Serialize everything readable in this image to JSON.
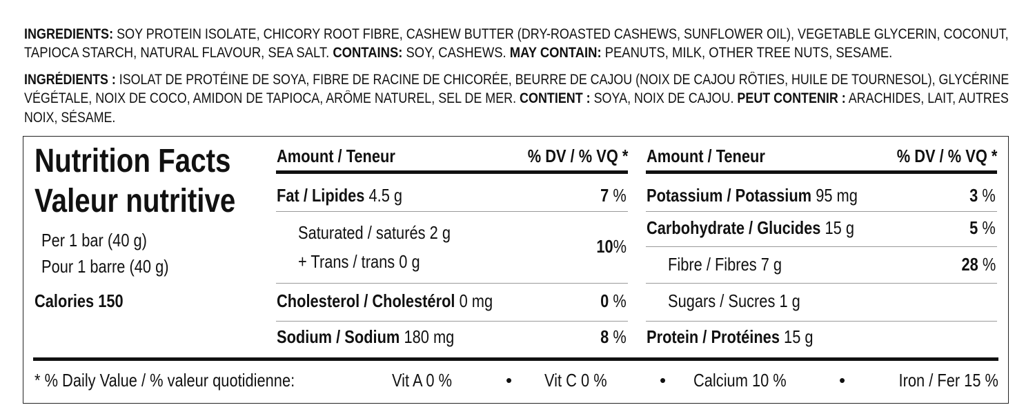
{
  "ingredients_en": [
    [
      {
        "b": "INGREDIENTS:",
        "t": " SOY PROTEIN ISOLATE, CHICORY ROOT FIBRE, CASHEW BUTTER (DRY-ROASTED CASHEWS, SUNFLOWER OIL), VEGETABLE GLYCERIN, COCONUT,"
      }
    ],
    [
      {
        "t": "TAPIOCA STARCH, NATURAL FLAVOUR, SEA SALT. "
      },
      {
        "b": "CONTAINS:",
        "t": " SOY, CASHEWS. "
      },
      {
        "b": "MAY CONTAIN:",
        "t": " PEANUTS, MILK, OTHER TREE NUTS, SESAME."
      }
    ]
  ],
  "ingredients_fr": [
    [
      {
        "b": "INGRÉDIENTS :",
        "t": " ISOLAT DE PROTÉINE DE SOYA, FIBRE DE RACINE DE CHICORÉE, BEURRE DE CAJOU (NOIX DE CAJOU RÔTIES, HUILE DE TOURNESOL), GLYCÉRINE"
      }
    ],
    [
      {
        "t": "VÉGÉTALE, NOIX DE COCO, AMIDON DE TAPIOCA, ARÔME NATUREL, SEL DE MER. "
      },
      {
        "b": "CONTIENT :",
        "t": " SOYA, NOIX DE CAJOU. "
      },
      {
        "b": "PEUT CONTENIR :",
        "t": " ARACHIDES, LAIT, AUTRES"
      }
    ],
    [
      {
        "t": "NOIX, SÉSAME."
      }
    ]
  ],
  "panel": {
    "title_en": "Nutrition Facts",
    "title_fr": "Valeur nutritive",
    "serving_en": "Per 1 bar (40 g)",
    "serving_fr": "Pour 1 barre (40 g)",
    "calories": "Calories 150",
    "header_amount": "Amount / Teneur",
    "header_dv": "% DV / % VQ *",
    "fat": {
      "label": "Fat / Lipides",
      "amount": "4.5 g",
      "dv": "7",
      "unit": "%"
    },
    "saturated": {
      "label": "Saturated / saturés 2 g"
    },
    "trans": {
      "label": "+ Trans / trans 0 g"
    },
    "sat_trans_dv": {
      "dv": "10",
      "unit": "%"
    },
    "cholesterol": {
      "label": "Cholesterol / Cholestérol",
      "amount": "0 mg",
      "dv": "0",
      "unit": "%"
    },
    "sodium": {
      "label": "Sodium / Sodium",
      "amount": "180 mg",
      "dv": "8",
      "unit": "%"
    },
    "potassium": {
      "label": "Potassium / Potassium",
      "amount": "95 mg",
      "dv": "3",
      "unit": "%"
    },
    "carbohydrate": {
      "label": "Carbohydrate / Glucides",
      "amount": "15 g",
      "dv": "5",
      "unit": "%"
    },
    "fibre": {
      "label": "Fibre / Fibres 7 g",
      "dv": "28",
      "unit": "%"
    },
    "sugars": {
      "label": "Sugars / Sucres 1 g"
    },
    "protein": {
      "label": "Protein / Protéines",
      "amount": "15  g"
    },
    "footer": {
      "note": "* % Daily Value / % valeur quotidienne:",
      "vit_a": "Vit A  0 %",
      "vit_c": "Vit C  0 %",
      "calcium": "Calcium 10 %",
      "iron": "Iron / Fer 15 %",
      "bullet": "•"
    }
  }
}
